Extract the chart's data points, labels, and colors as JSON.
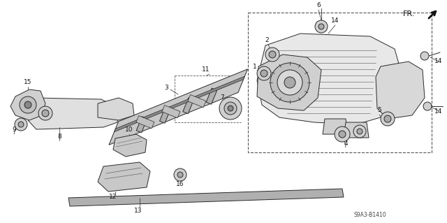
{
  "bg_color": "#ffffff",
  "line_color": "#2a2a2a",
  "gray_fill": "#e0e0e0",
  "dark_gray": "#aaaaaa",
  "diagram_code": "S9A3-B1410",
  "figsize": [
    6.4,
    3.19
  ],
  "dpi": 100
}
